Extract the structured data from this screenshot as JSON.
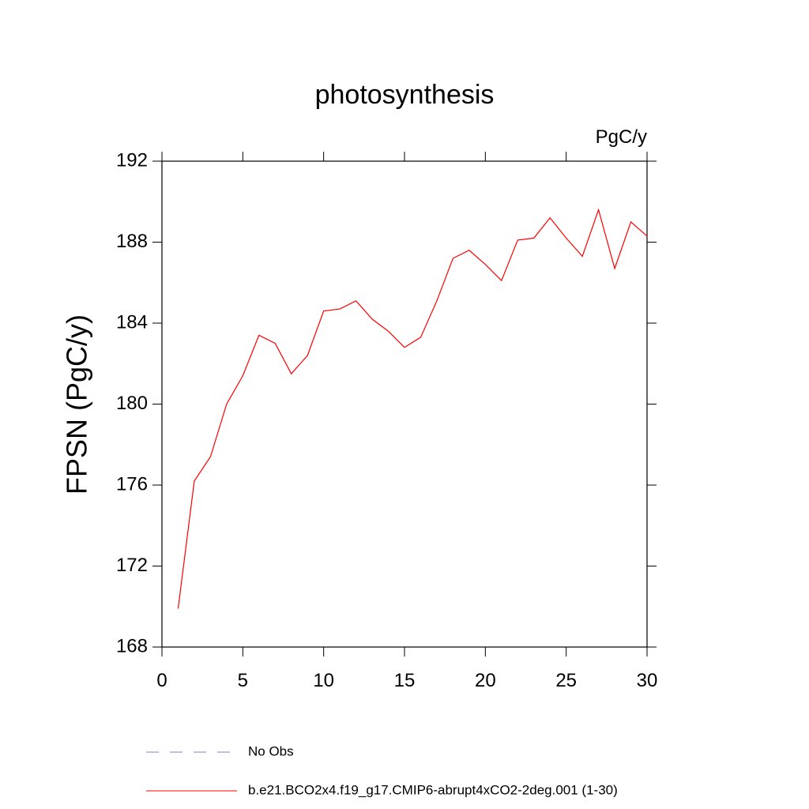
{
  "chart_data": {
    "type": "line",
    "title": "photosynthesis",
    "units": "PgC/y",
    "ylabel": "FPSN  (PgC/y)",
    "x": [
      1,
      2,
      3,
      4,
      5,
      6,
      7,
      8,
      9,
      10,
      11,
      12,
      13,
      14,
      15,
      16,
      17,
      18,
      19,
      20,
      21,
      22,
      23,
      24,
      25,
      26,
      27,
      28,
      29,
      30
    ],
    "series": [
      {
        "name": "b.e21.BCO2x4.f19_g17.CMIP6-abrupt4xCO2-2deg.001 (1-30)",
        "color": "#ff0000",
        "values": [
          169.9,
          176.2,
          177.4,
          180.0,
          181.4,
          183.4,
          183.0,
          181.5,
          182.4,
          184.6,
          184.7,
          185.1,
          184.2,
          183.6,
          182.8,
          183.3,
          185.1,
          187.2,
          187.6,
          186.9,
          186.1,
          188.1,
          188.2,
          189.2,
          188.2,
          187.3,
          189.6,
          186.7,
          189.0,
          188.3
        ]
      }
    ],
    "legend_extra": {
      "name": "No Obs",
      "color": "#8080c8",
      "dash": "dashed"
    },
    "xlim": [
      0,
      30
    ],
    "xticks": [
      0,
      5,
      10,
      15,
      20,
      25,
      30
    ],
    "ylim": [
      168,
      192
    ],
    "yticks": [
      168,
      172,
      176,
      180,
      184,
      188,
      192
    ]
  }
}
